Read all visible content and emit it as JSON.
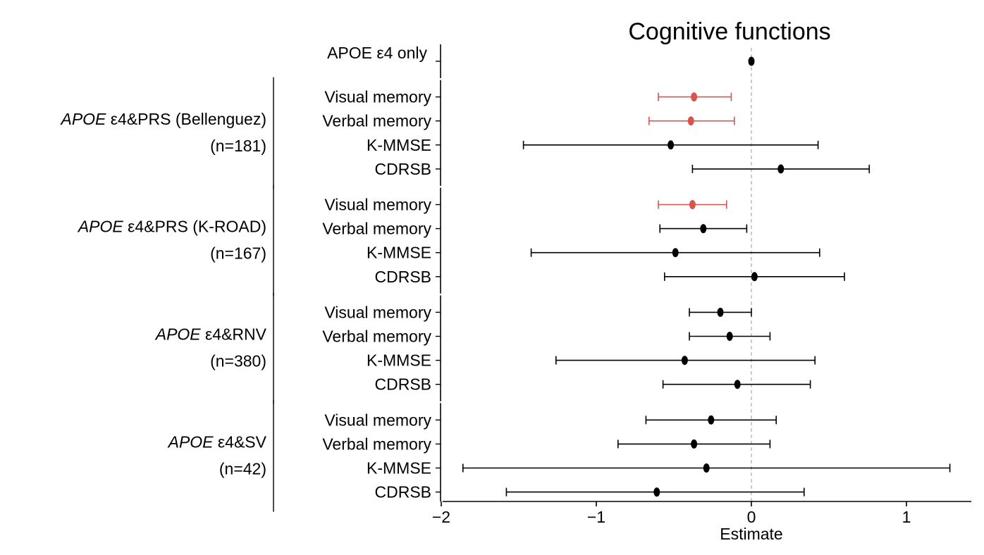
{
  "chart_data": {
    "type": "forest",
    "title": "Cognitive functions",
    "xlabel": "Estimate",
    "xlim": [
      -2.05,
      1.42
    ],
    "xticks": [
      -2,
      -1,
      0,
      1
    ],
    "xtick_labels": [
      "−2",
      "−1",
      "0",
      "1"
    ],
    "reference_line": 0,
    "colors": {
      "significant": "#d9534f",
      "default": "#000000"
    },
    "groups": [
      {
        "label_italic": "",
        "label_rest": "APOE ε4  only",
        "n_label": "",
        "rows": [
          {
            "label": "",
            "estimate": 0.0,
            "lower": 0.0,
            "upper": 0.0,
            "significant": false
          }
        ]
      },
      {
        "label_italic": "APOE",
        "label_rest": " ε4&PRS (Bellenguez)",
        "n_label": "(n=181)",
        "rows": [
          {
            "label": "Visual memory",
            "estimate": -0.37,
            "lower": -0.6,
            "upper": -0.13,
            "significant": true
          },
          {
            "label": "Verbal memory",
            "estimate": -0.39,
            "lower": -0.66,
            "upper": -0.11,
            "significant": true
          },
          {
            "label": "K-MMSE",
            "estimate": -0.52,
            "lower": -1.47,
            "upper": 0.43,
            "significant": false
          },
          {
            "label": "CDRSB",
            "estimate": 0.19,
            "lower": -0.38,
            "upper": 0.76,
            "significant": false
          }
        ]
      },
      {
        "label_italic": "APOE",
        "label_rest": " ε4&PRS (K-ROAD)",
        "n_label": "(n=167)",
        "rows": [
          {
            "label": "Visual memory",
            "estimate": -0.38,
            "lower": -0.6,
            "upper": -0.16,
            "significant": true
          },
          {
            "label": "Verbal memory",
            "estimate": -0.31,
            "lower": -0.59,
            "upper": -0.03,
            "significant": false
          },
          {
            "label": "K-MMSE",
            "estimate": -0.49,
            "lower": -1.42,
            "upper": 0.44,
            "significant": false
          },
          {
            "label": "CDRSB",
            "estimate": 0.02,
            "lower": -0.56,
            "upper": 0.6,
            "significant": false
          }
        ]
      },
      {
        "label_italic": "APOE",
        "label_rest": " ε4&RNV",
        "n_label": "(n=380)",
        "rows": [
          {
            "label": "Visual memory",
            "estimate": -0.2,
            "lower": -0.4,
            "upper": 0.0,
            "significant": false
          },
          {
            "label": "Verbal memory",
            "estimate": -0.14,
            "lower": -0.4,
            "upper": 0.12,
            "significant": false
          },
          {
            "label": "K-MMSE",
            "estimate": -0.43,
            "lower": -1.26,
            "upper": 0.41,
            "significant": false
          },
          {
            "label": "CDRSB",
            "estimate": -0.09,
            "lower": -0.57,
            "upper": 0.38,
            "significant": false
          }
        ]
      },
      {
        "label_italic": "APOE",
        "label_rest": " ε4&SV",
        "n_label": "(n=42)",
        "rows": [
          {
            "label": "Visual memory",
            "estimate": -0.26,
            "lower": -0.68,
            "upper": 0.16,
            "significant": false
          },
          {
            "label": "Verbal memory",
            "estimate": -0.37,
            "lower": -0.86,
            "upper": 0.12,
            "significant": false
          },
          {
            "label": "K-MMSE",
            "estimate": -0.29,
            "lower": -1.86,
            "upper": 1.28,
            "significant": false
          },
          {
            "label": "CDRSB",
            "estimate": -0.61,
            "lower": -1.58,
            "upper": 0.34,
            "significant": false
          }
        ]
      }
    ]
  }
}
